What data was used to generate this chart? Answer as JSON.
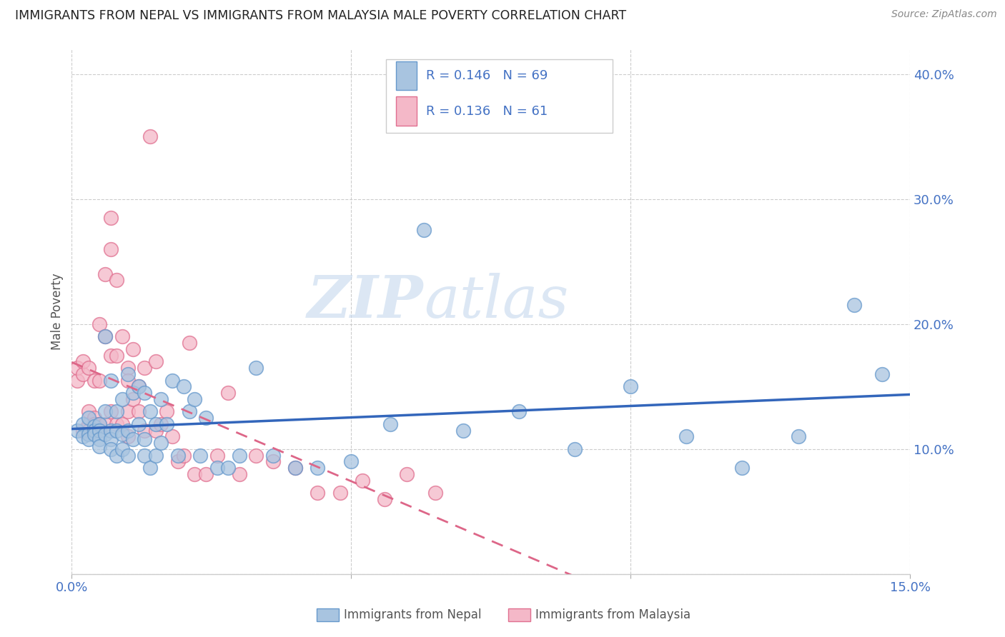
{
  "title": "IMMIGRANTS FROM NEPAL VS IMMIGRANTS FROM MALAYSIA MALE POVERTY CORRELATION CHART",
  "source": "Source: ZipAtlas.com",
  "ylabel": "Male Poverty",
  "xlim": [
    0.0,
    0.15
  ],
  "ylim": [
    0.0,
    0.42
  ],
  "nepal_color": "#a8c4e0",
  "nepal_edge_color": "#6699cc",
  "malaysia_color": "#f4b8c8",
  "malaysia_edge_color": "#e07090",
  "nepal_R": 0.146,
  "nepal_N": 69,
  "malaysia_R": 0.136,
  "malaysia_N": 61,
  "nepal_line_color": "#3366bb",
  "malaysia_line_color": "#dd6688",
  "watermark_zip": "ZIP",
  "watermark_atlas": "atlas",
  "legend_label_nepal": "Immigrants from Nepal",
  "legend_label_malaysia": "Immigrants from Malaysia",
  "nepal_x": [
    0.001,
    0.002,
    0.002,
    0.003,
    0.003,
    0.003,
    0.004,
    0.004,
    0.004,
    0.005,
    0.005,
    0.005,
    0.005,
    0.006,
    0.006,
    0.006,
    0.007,
    0.007,
    0.007,
    0.007,
    0.008,
    0.008,
    0.008,
    0.009,
    0.009,
    0.009,
    0.01,
    0.01,
    0.01,
    0.011,
    0.011,
    0.012,
    0.012,
    0.013,
    0.013,
    0.013,
    0.014,
    0.014,
    0.015,
    0.015,
    0.016,
    0.016,
    0.017,
    0.018,
    0.019,
    0.02,
    0.021,
    0.022,
    0.023,
    0.024,
    0.026,
    0.028,
    0.03,
    0.033,
    0.036,
    0.04,
    0.044,
    0.05,
    0.057,
    0.063,
    0.07,
    0.08,
    0.09,
    0.1,
    0.11,
    0.12,
    0.13,
    0.14,
    0.145
  ],
  "nepal_y": [
    0.115,
    0.12,
    0.11,
    0.125,
    0.112,
    0.108,
    0.118,
    0.115,
    0.112,
    0.12,
    0.115,
    0.108,
    0.102,
    0.19,
    0.13,
    0.112,
    0.155,
    0.115,
    0.108,
    0.1,
    0.13,
    0.115,
    0.095,
    0.14,
    0.112,
    0.1,
    0.16,
    0.115,
    0.095,
    0.145,
    0.108,
    0.15,
    0.12,
    0.095,
    0.145,
    0.108,
    0.13,
    0.085,
    0.12,
    0.095,
    0.14,
    0.105,
    0.12,
    0.155,
    0.095,
    0.15,
    0.13,
    0.14,
    0.095,
    0.125,
    0.085,
    0.085,
    0.095,
    0.165,
    0.095,
    0.085,
    0.085,
    0.09,
    0.12,
    0.275,
    0.115,
    0.13,
    0.1,
    0.15,
    0.11,
    0.085,
    0.11,
    0.215,
    0.16
  ],
  "malaysia_x": [
    0.001,
    0.001,
    0.002,
    0.002,
    0.002,
    0.003,
    0.003,
    0.003,
    0.003,
    0.004,
    0.004,
    0.004,
    0.005,
    0.005,
    0.005,
    0.005,
    0.006,
    0.006,
    0.006,
    0.007,
    0.007,
    0.007,
    0.007,
    0.008,
    0.008,
    0.008,
    0.009,
    0.009,
    0.01,
    0.01,
    0.01,
    0.01,
    0.011,
    0.011,
    0.012,
    0.012,
    0.013,
    0.013,
    0.014,
    0.015,
    0.015,
    0.016,
    0.017,
    0.018,
    0.019,
    0.02,
    0.021,
    0.022,
    0.024,
    0.026,
    0.028,
    0.03,
    0.033,
    0.036,
    0.04,
    0.044,
    0.048,
    0.052,
    0.056,
    0.06,
    0.065
  ],
  "malaysia_y": [
    0.155,
    0.165,
    0.16,
    0.17,
    0.115,
    0.12,
    0.13,
    0.165,
    0.115,
    0.155,
    0.125,
    0.12,
    0.2,
    0.12,
    0.155,
    0.115,
    0.24,
    0.19,
    0.12,
    0.285,
    0.26,
    0.175,
    0.13,
    0.235,
    0.175,
    0.12,
    0.19,
    0.12,
    0.165,
    0.155,
    0.13,
    0.11,
    0.18,
    0.14,
    0.15,
    0.13,
    0.165,
    0.115,
    0.35,
    0.17,
    0.115,
    0.12,
    0.13,
    0.11,
    0.09,
    0.095,
    0.185,
    0.08,
    0.08,
    0.095,
    0.145,
    0.08,
    0.095,
    0.09,
    0.085,
    0.065,
    0.065,
    0.075,
    0.06,
    0.08,
    0.065
  ]
}
